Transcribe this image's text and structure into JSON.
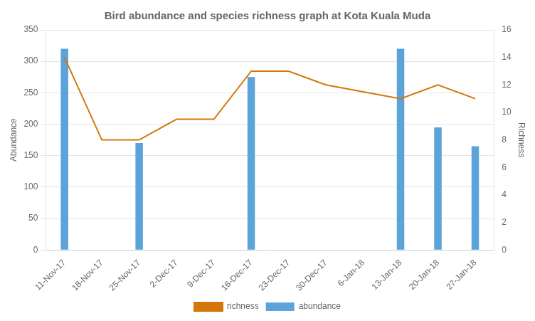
{
  "chart_data": {
    "type": "bar",
    "title": "Bird abundance and species richness graph at Kota Kuala Muda",
    "categories": [
      "11-Nov-17",
      "18-Nov-17",
      "25-Nov-17",
      "2-Dec-17",
      "9-Dec-17",
      "16-Dec-17",
      "23-Dec-17",
      "30-Dec-17",
      "6-Jan-18",
      "13-Jan-18",
      "20-Jan-18",
      "27-Jan-18"
    ],
    "series": [
      {
        "name": "abundance",
        "type": "bar",
        "color": "#5ba3d9",
        "axis": "y",
        "values": [
          320,
          0,
          170,
          0,
          0,
          275,
          0,
          0,
          0,
          320,
          195,
          165
        ]
      },
      {
        "name": "richness",
        "type": "line",
        "color": "#d4760a",
        "axis": "y2",
        "values": [
          14,
          8,
          8,
          9.5,
          9.5,
          13,
          13,
          12,
          11.5,
          11,
          12,
          11
        ]
      }
    ],
    "ylabel": "Abundance",
    "y2label": "Richness",
    "ylim": [
      0,
      350
    ],
    "yticks": [
      0,
      50,
      100,
      150,
      200,
      250,
      300,
      350
    ],
    "y2lim": [
      0,
      16
    ],
    "y2ticks": [
      0,
      2,
      4,
      6,
      8,
      10,
      12,
      14,
      16
    ],
    "grid": true,
    "legend": "bottom"
  }
}
